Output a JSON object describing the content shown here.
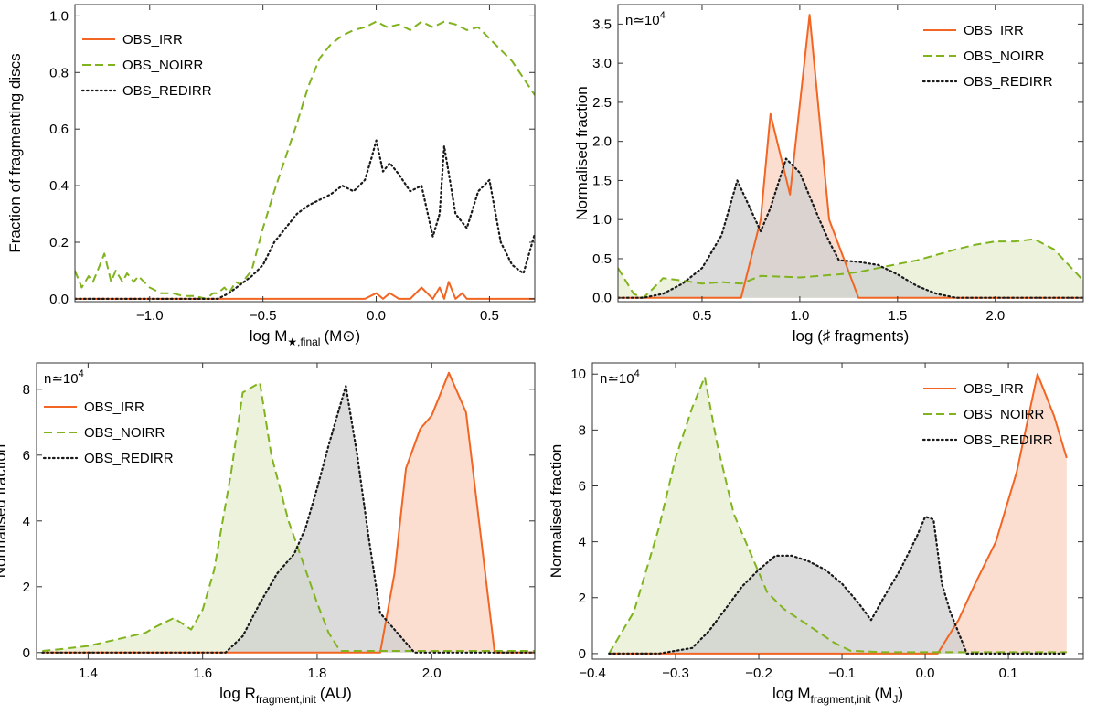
{
  "panels": [
    {
      "id": "tl",
      "type": "line",
      "xlabel": "log M",
      "xlabel_sub": "★,final",
      "xlabel_unit": "(M⊙)",
      "ylabel": "Fraction of fragmenting discs",
      "xlim": [
        -1.33,
        0.7
      ],
      "ylim": [
        -0.01,
        1.04
      ],
      "xticks": [
        -1.0,
        -0.5,
        0.0,
        0.5
      ],
      "xtick_labels": [
        "−1.0",
        "−0.5",
        "0.0",
        "0.5"
      ],
      "yticks": [
        0.0,
        0.2,
        0.4,
        0.6,
        0.8,
        1.0
      ],
      "ytick_labels": [
        "0.0",
        "0.2",
        "0.4",
        "0.6",
        "0.8",
        "1.0"
      ],
      "fill": false,
      "legend": {
        "position": "top-left",
        "entries": [
          "OBS_IRR",
          "OBS_NOIRR",
          "OBS_REDIRR"
        ]
      },
      "series": [
        {
          "name": "OBS_IRR",
          "style": "solid",
          "color": "#f26522",
          "x": [
            -1.33,
            -0.05,
            0.0,
            0.03,
            0.06,
            0.1,
            0.15,
            0.2,
            0.25,
            0.28,
            0.3,
            0.32,
            0.35,
            0.38,
            0.4,
            0.45,
            0.5,
            0.7
          ],
          "y": [
            0,
            0,
            0.02,
            0,
            0.02,
            0,
            0,
            0.04,
            0,
            0.04,
            0,
            0.06,
            0,
            0.02,
            0,
            0,
            0,
            0
          ]
        },
        {
          "name": "OBS_NOIRR",
          "style": "dashed",
          "color": "#80b31e",
          "x": [
            -1.33,
            -1.3,
            -1.27,
            -1.25,
            -1.22,
            -1.2,
            -1.17,
            -1.15,
            -1.12,
            -1.1,
            -1.07,
            -1.05,
            -1.0,
            -0.95,
            -0.9,
            -0.85,
            -0.8,
            -0.75,
            -0.72,
            -0.7,
            -0.67,
            -0.65,
            -0.62,
            -0.6,
            -0.57,
            -0.55,
            -0.5,
            -0.45,
            -0.4,
            -0.35,
            -0.3,
            -0.25,
            -0.2,
            -0.15,
            -0.1,
            -0.05,
            0.0,
            0.05,
            0.1,
            0.15,
            0.2,
            0.25,
            0.3,
            0.35,
            0.4,
            0.45,
            0.5,
            0.55,
            0.6,
            0.65,
            0.7
          ],
          "y": [
            0.1,
            0.04,
            0.08,
            0.06,
            0.12,
            0.16,
            0.06,
            0.1,
            0.06,
            0.09,
            0.06,
            0.08,
            0.04,
            0.02,
            0.02,
            0.01,
            0.01,
            0.0,
            0.02,
            0.02,
            0.04,
            0.02,
            0.06,
            0.05,
            0.08,
            0.1,
            0.25,
            0.38,
            0.5,
            0.62,
            0.75,
            0.85,
            0.9,
            0.93,
            0.95,
            0.96,
            0.98,
            0.96,
            0.97,
            0.95,
            0.98,
            0.96,
            0.98,
            0.97,
            0.95,
            0.96,
            0.92,
            0.88,
            0.84,
            0.78,
            0.72
          ]
        },
        {
          "name": "OBS_REDIRR",
          "style": "dotted",
          "color": "#1a1a1a",
          "x": [
            -1.33,
            -0.7,
            -0.65,
            -0.6,
            -0.55,
            -0.5,
            -0.45,
            -0.4,
            -0.35,
            -0.3,
            -0.25,
            -0.2,
            -0.15,
            -0.1,
            -0.05,
            -0.02,
            0.0,
            0.03,
            0.06,
            0.1,
            0.15,
            0.2,
            0.25,
            0.28,
            0.3,
            0.35,
            0.4,
            0.45,
            0.5,
            0.55,
            0.6,
            0.65,
            0.7
          ],
          "y": [
            0,
            0,
            0.02,
            0.05,
            0.08,
            0.12,
            0.2,
            0.25,
            0.3,
            0.33,
            0.35,
            0.37,
            0.4,
            0.38,
            0.42,
            0.5,
            0.56,
            0.45,
            0.48,
            0.44,
            0.38,
            0.4,
            0.22,
            0.3,
            0.54,
            0.3,
            0.25,
            0.38,
            0.42,
            0.2,
            0.12,
            0.09,
            0.23
          ]
        }
      ]
    },
    {
      "id": "tr",
      "type": "area",
      "note": "n≃10",
      "note_sup": "4",
      "xlabel": "log (♯ fragments)",
      "ylabel": "Normalised fraction",
      "xlim": [
        0.07,
        2.45
      ],
      "ylim": [
        -0.05,
        3.75
      ],
      "xticks": [
        0.5,
        1.0,
        1.5,
        2.0
      ],
      "xtick_labels": [
        "0.5",
        "1.0",
        "1.5",
        "2.0"
      ],
      "yticks": [
        0.0,
        0.5,
        1.0,
        1.5,
        2.0,
        2.5,
        3.0,
        3.5
      ],
      "ytick_labels": [
        "0.0",
        "0.5",
        "1.0",
        "1.5",
        "2.0",
        "2.5",
        "3.0",
        "3.5"
      ],
      "fill": true,
      "legend": {
        "position": "top-right",
        "entries": [
          "OBS_IRR",
          "OBS_NOIRR",
          "OBS_REDIRR"
        ]
      },
      "series": [
        {
          "name": "OBS_IRR",
          "style": "solid",
          "color": "#f26522",
          "fill_color": "#fbd3c2",
          "x": [
            0.07,
            0.7,
            0.8,
            0.85,
            0.95,
            1.05,
            1.15,
            1.3,
            2.45
          ],
          "y": [
            0,
            0,
            1.0,
            2.35,
            1.32,
            3.62,
            1.0,
            0,
            0
          ]
        },
        {
          "name": "OBS_NOIRR",
          "style": "dashed",
          "color": "#80b31e",
          "fill_color": "#e5eed0",
          "x": [
            0.07,
            0.15,
            0.2,
            0.25,
            0.3,
            0.4,
            0.5,
            0.6,
            0.7,
            0.8,
            0.9,
            1.0,
            1.1,
            1.2,
            1.3,
            1.4,
            1.5,
            1.6,
            1.7,
            1.8,
            1.9,
            2.0,
            2.1,
            2.2,
            2.3,
            2.45
          ],
          "y": [
            0.38,
            0.05,
            0.0,
            0.12,
            0.25,
            0.22,
            0.18,
            0.2,
            0.18,
            0.28,
            0.27,
            0.26,
            0.28,
            0.3,
            0.33,
            0.38,
            0.43,
            0.48,
            0.55,
            0.62,
            0.68,
            0.72,
            0.72,
            0.75,
            0.62,
            0.22
          ]
        },
        {
          "name": "OBS_REDIRR",
          "style": "dotted",
          "color": "#1a1a1a",
          "fill_color": "#cfcfcf",
          "x": [
            0.07,
            0.2,
            0.3,
            0.4,
            0.5,
            0.6,
            0.68,
            0.8,
            0.85,
            0.93,
            1.0,
            1.1,
            1.15,
            1.2,
            1.3,
            1.4,
            1.5,
            1.6,
            1.7,
            1.8,
            2.45
          ],
          "y": [
            0,
            0,
            0.05,
            0.18,
            0.38,
            0.8,
            1.5,
            0.85,
            1.15,
            1.78,
            1.6,
            1.0,
            0.72,
            0.48,
            0.46,
            0.42,
            0.3,
            0.15,
            0.05,
            0,
            0
          ]
        }
      ]
    },
    {
      "id": "bl",
      "type": "area",
      "note": "n≃10",
      "note_sup": "4",
      "xlabel": "log R",
      "xlabel_sub": "fragment,init",
      "xlabel_unit": "(AU)",
      "ylabel": "Normalised fraction",
      "xlim": [
        1.31,
        2.18
      ],
      "ylim": [
        -0.2,
        8.8
      ],
      "xticks": [
        1.4,
        1.6,
        1.8,
        2.0
      ],
      "xtick_labels": [
        "1.4",
        "1.6",
        "1.8",
        "2.0"
      ],
      "yticks": [
        0,
        2,
        4,
        6,
        8
      ],
      "ytick_labels": [
        "0",
        "2",
        "4",
        "6",
        "8"
      ],
      "fill": true,
      "legend": {
        "position": "top-left",
        "entries": [
          "OBS_IRR",
          "OBS_NOIRR",
          "OBS_REDIRR"
        ]
      },
      "series": [
        {
          "name": "OBS_IRR",
          "style": "solid",
          "color": "#f26522",
          "fill_color": "#fbd3c2",
          "x": [
            1.32,
            1.91,
            1.935,
            1.955,
            1.98,
            2.0,
            2.03,
            2.06,
            2.11,
            2.18
          ],
          "y": [
            0,
            0,
            2.4,
            5.6,
            6.8,
            7.2,
            8.5,
            7.3,
            0,
            0
          ]
        },
        {
          "name": "OBS_NOIRR",
          "style": "dashed",
          "color": "#80b31e",
          "fill_color": "#e5eed0",
          "x": [
            1.32,
            1.35,
            1.4,
            1.45,
            1.5,
            1.52,
            1.55,
            1.58,
            1.6,
            1.62,
            1.65,
            1.67,
            1.7,
            1.72,
            1.75,
            1.78,
            1.8,
            1.82,
            1.84,
            2.18
          ],
          "y": [
            0.05,
            0.1,
            0.2,
            0.4,
            0.6,
            0.8,
            1.05,
            0.7,
            1.3,
            2.5,
            5.5,
            7.9,
            8.2,
            6.0,
            4.0,
            2.5,
            1.5,
            0.6,
            0.05,
            0.05
          ]
        },
        {
          "name": "OBS_REDIRR",
          "style": "dotted",
          "color": "#1a1a1a",
          "fill_color": "#cfcfcf",
          "x": [
            1.32,
            1.64,
            1.67,
            1.7,
            1.73,
            1.76,
            1.78,
            1.8,
            1.82,
            1.85,
            1.87,
            1.89,
            1.91,
            1.93,
            1.95,
            1.97,
            2.18
          ],
          "y": [
            0,
            0,
            0.5,
            1.5,
            2.4,
            3.0,
            3.8,
            5.0,
            6.3,
            8.1,
            6.0,
            3.5,
            1.2,
            0.8,
            0.4,
            0,
            0
          ]
        }
      ]
    },
    {
      "id": "br",
      "type": "area",
      "note": "n≃10",
      "note_sup": "4",
      "xlabel": "log M",
      "xlabel_sub": "fragment,init",
      "xlabel_unit": "(M",
      "xlabel_unit_sub": "J",
      "xlabel_unit_end": ")",
      "ylabel": "Normalised fraction",
      "xlim": [
        -0.4,
        0.19
      ],
      "ylim": [
        -0.2,
        10.4
      ],
      "xticks": [
        -0.4,
        -0.3,
        -0.2,
        -0.1,
        0.0,
        0.1
      ],
      "xtick_labels": [
        "−0.4",
        "−0.3",
        "−0.2",
        "−0.1",
        "0.0",
        "0.1"
      ],
      "yticks": [
        0,
        2,
        4,
        6,
        8,
        10
      ],
      "ytick_labels": [
        "0",
        "2",
        "4",
        "6",
        "8",
        "10"
      ],
      "fill": true,
      "legend": {
        "position": "top-right",
        "entries": [
          "OBS_IRR",
          "OBS_NOIRR",
          "OBS_REDIRR"
        ]
      },
      "series": [
        {
          "name": "OBS_IRR",
          "style": "solid",
          "color": "#f26522",
          "fill_color": "#fbd3c2",
          "x": [
            -0.38,
            0.015,
            0.04,
            0.06,
            0.085,
            0.11,
            0.135,
            0.155,
            0.17
          ],
          "y": [
            0,
            0,
            1.2,
            2.5,
            4.0,
            6.5,
            10.0,
            8.5,
            7.0
          ]
        },
        {
          "name": "OBS_NOIRR",
          "style": "dashed",
          "color": "#80b31e",
          "fill_color": "#e5eed0",
          "x": [
            -0.38,
            -0.35,
            -0.32,
            -0.3,
            -0.28,
            -0.265,
            -0.25,
            -0.23,
            -0.21,
            -0.19,
            -0.17,
            -0.15,
            -0.13,
            -0.11,
            -0.09,
            -0.05,
            0.0,
            0.05,
            0.17
          ],
          "y": [
            0,
            1.5,
            4.5,
            7.0,
            8.8,
            9.9,
            7.5,
            5.0,
            3.6,
            2.2,
            1.6,
            1.2,
            0.8,
            0.4,
            0.1,
            0.05,
            0.05,
            0.05,
            0.05
          ]
        },
        {
          "name": "OBS_REDIRR",
          "style": "dotted",
          "color": "#1a1a1a",
          "fill_color": "#cfcfcf",
          "x": [
            -0.38,
            -0.32,
            -0.28,
            -0.26,
            -0.24,
            -0.22,
            -0.2,
            -0.18,
            -0.16,
            -0.14,
            -0.12,
            -0.1,
            -0.08,
            -0.065,
            -0.05,
            -0.03,
            -0.01,
            0.0,
            0.01,
            0.02,
            0.03,
            0.05,
            0.17
          ],
          "y": [
            0,
            0,
            0.2,
            0.8,
            1.6,
            2.4,
            3.0,
            3.5,
            3.5,
            3.3,
            3.0,
            2.5,
            1.8,
            1.2,
            2.0,
            3.0,
            4.2,
            4.9,
            4.8,
            2.5,
            1.5,
            0,
            0
          ]
        }
      ]
    }
  ]
}
